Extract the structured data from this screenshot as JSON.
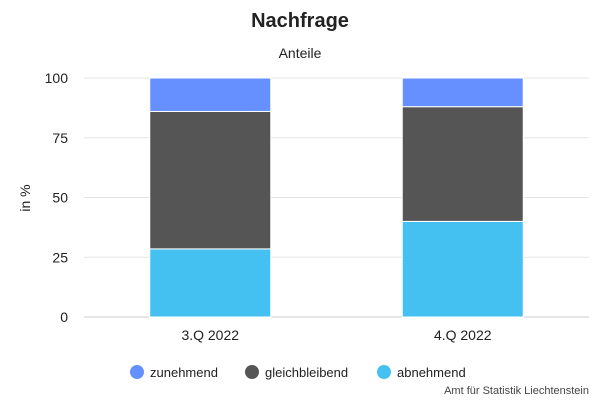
{
  "chart_data": {
    "type": "bar",
    "stacked": true,
    "title": "Nachfrage",
    "subtitle": "Anteile",
    "ylabel": "in %",
    "xlabel": "",
    "ylim": [
      0,
      100
    ],
    "yticks": [
      "0",
      "25",
      "50",
      "75",
      "100"
    ],
    "grid": true,
    "legend_position": "bottom",
    "categories": [
      "3.Q 2022",
      "4.Q 2022"
    ],
    "series": [
      {
        "name": "abnehmend",
        "values": [
          28.5,
          40
        ],
        "color": "#44c1f0"
      },
      {
        "name": "gleichbleibend",
        "values": [
          57.5,
          48
        ],
        "color": "#555555"
      },
      {
        "name": "zunehmend",
        "values": [
          14,
          12
        ],
        "color": "#6690ff"
      }
    ],
    "legend_order": [
      "zunehmend",
      "gleichbleibend",
      "abnehmend"
    ],
    "credit": "Amt für Statistik Liechtenstein"
  }
}
